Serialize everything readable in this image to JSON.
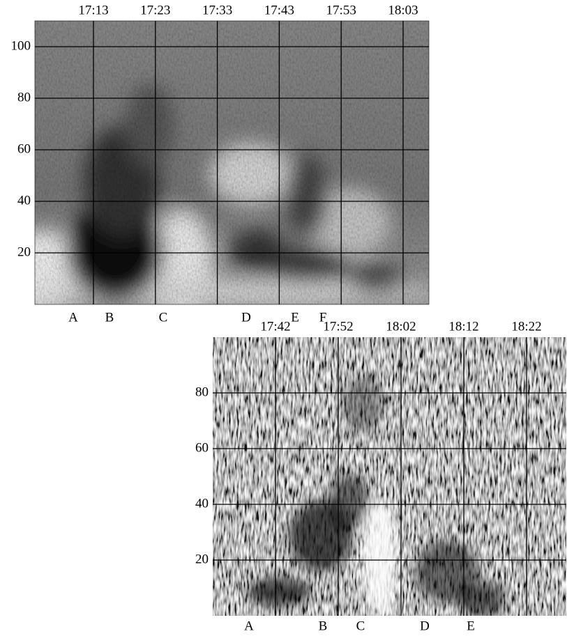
{
  "chart_data": [
    {
      "type": "heatmap",
      "xticks": [
        "17:13",
        "17:23",
        "17:33",
        "17:43",
        "17:53",
        "18:03"
      ],
      "ylim": [
        0,
        110
      ],
      "yticks": [
        20,
        40,
        60,
        80,
        100
      ],
      "annotations": [
        "A",
        "B",
        "C",
        "D",
        "E",
        "F"
      ]
    },
    {
      "type": "heatmap",
      "xticks": [
        "17:42",
        "17:52",
        "18:02",
        "18:12",
        "18:22"
      ],
      "ylim": [
        0,
        100
      ],
      "yticks": [
        20,
        40,
        60,
        80
      ],
      "annotations": [
        "A",
        "B",
        "C",
        "D",
        "E"
      ]
    }
  ]
}
